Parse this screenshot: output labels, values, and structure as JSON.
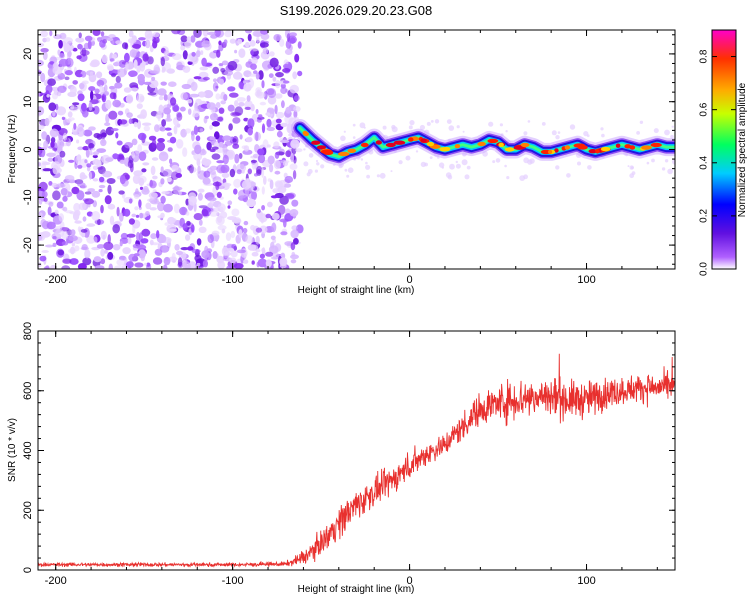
{
  "title": "S199.2026.029.20.23.G08",
  "chart_data": [
    {
      "type": "heatmap",
      "xlabel": "Height of straight line (km)",
      "ylabel": "Frequency (Hz)",
      "xlim": [
        -210,
        150
      ],
      "ylim": [
        -25,
        25
      ],
      "x_ticks": [
        -200,
        -100,
        0,
        100
      ],
      "y_ticks": [
        -20,
        -10,
        0,
        10,
        20
      ],
      "noise_region_x": [
        -210,
        -62
      ],
      "ridge": {
        "x": [
          -62,
          -55,
          -50,
          -45,
          -40,
          -35,
          -30,
          -25,
          -20,
          -15,
          -10,
          -5,
          0,
          5,
          10,
          15,
          20,
          25,
          30,
          35,
          40,
          45,
          50,
          55,
          60,
          65,
          70,
          75,
          80,
          85,
          90,
          95,
          100,
          105,
          110,
          115,
          120,
          125,
          130,
          135,
          140,
          145,
          150
        ],
        "freq": [
          4.5,
          2.0,
          0.5,
          -1.0,
          -1.5,
          -0.5,
          0.0,
          1.0,
          2.5,
          0.5,
          1.0,
          1.5,
          2.0,
          2.5,
          1.5,
          0.5,
          0.0,
          0.5,
          1.0,
          0.5,
          1.0,
          2.0,
          1.5,
          0.0,
          0.0,
          1.0,
          0.5,
          -0.5,
          -0.5,
          0.0,
          0.5,
          1.0,
          0.0,
          -0.5,
          0.0,
          0.5,
          1.0,
          0.5,
          0.0,
          0.5,
          1.0,
          0.5,
          0.5
        ]
      },
      "colorbar": {
        "label": "Normalized spectral amplitude",
        "range": [
          0.0,
          0.9
        ],
        "ticks": [
          "0.0",
          "0.2",
          "0.4",
          "0.6",
          "0.8"
        ]
      }
    },
    {
      "type": "line",
      "xlabel": "Height of straight line (km)",
      "ylabel": "SNR (10 * v/v)",
      "xlim": [
        -210,
        150
      ],
      "ylim": [
        0,
        800
      ],
      "x_ticks": [
        -200,
        -100,
        0,
        100
      ],
      "y_ticks": [
        0,
        200,
        400,
        600,
        800
      ],
      "series": [
        {
          "name": "SNR",
          "color": "#e8302e",
          "x": [
            -210,
            -180,
            -150,
            -120,
            -90,
            -70,
            -60,
            -50,
            -40,
            -30,
            -20,
            -10,
            0,
            10,
            20,
            30,
            40,
            50,
            60,
            70,
            80,
            90,
            100,
            110,
            120,
            130,
            140,
            150
          ],
          "mean": [
            18,
            18,
            18,
            18,
            18,
            20,
            40,
            90,
            160,
            220,
            260,
            300,
            350,
            390,
            420,
            480,
            540,
            560,
            570,
            580,
            580,
            570,
            570,
            590,
            600,
            610,
            610,
            615
          ],
          "spread": [
            8,
            8,
            8,
            8,
            8,
            10,
            30,
            50,
            70,
            70,
            60,
            60,
            60,
            50,
            50,
            60,
            70,
            80,
            90,
            90,
            90,
            80,
            80,
            70,
            60,
            60,
            60,
            60
          ]
        }
      ]
    }
  ]
}
